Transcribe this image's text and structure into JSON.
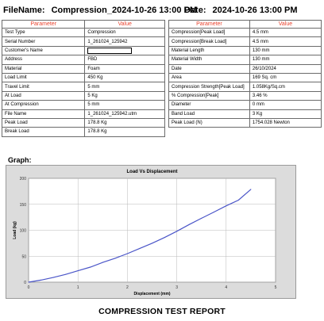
{
  "header": {
    "filename_label": "FileName:",
    "filename_value": "Compression_2024-10-26 13:00 PM",
    "date_label": "Date:",
    "date_value": "2024-10-26 13:00 PM"
  },
  "table_headers": {
    "parameter": "Parameter",
    "value": "Value"
  },
  "left_table": [
    {
      "param": "Test Type",
      "value": "Compression"
    },
    {
      "param": "Serial Number",
      "value": "1_261024_125942"
    },
    {
      "param": "Customer's Name",
      "value": ""
    },
    {
      "param": "Address",
      "value": "FBD"
    },
    {
      "param": "Material",
      "value": "Foam"
    },
    {
      "param": "Load Limit",
      "value": "450 Kg"
    },
    {
      "param": "Travel Limit",
      "value": "5 mm"
    },
    {
      "param": "At Load",
      "value": "5 Kg"
    },
    {
      "param": "At Compression",
      "value": "5 mm"
    },
    {
      "param": "File Name",
      "value": "1_261024_125942.utm"
    },
    {
      "param": "Peak Load",
      "value": "178.8 Kg"
    },
    {
      "param": "Break Load",
      "value": "178.8 Kg"
    }
  ],
  "right_table": [
    {
      "param": "Compression[Peak Load]",
      "value": "4.5 mm"
    },
    {
      "param": "Compression[Break Load]",
      "value": "4.5 mm"
    },
    {
      "param": "Material Length",
      "value": "130 mm"
    },
    {
      "param": "Material Width",
      "value": "130 mm"
    },
    {
      "param": "Date",
      "value": "26/10/2024"
    },
    {
      "param": "Area",
      "value": "169 Sq. cm"
    },
    {
      "param": "Compression Strength[Peak Load]",
      "value": " 1.058Kg/Sq.cm"
    },
    {
      "param": "% Compression[Peak]",
      "value": "3.46 %"
    },
    {
      "param": "Diameter",
      "value": "0 mm"
    },
    {
      "param": "Band Load",
      "value": "3 Kg"
    },
    {
      "param": "Peak Load (N)",
      "value": "1754.028 Newton"
    }
  ],
  "graph_label": "Graph:",
  "footer": "COMPRESSION TEST REPORT",
  "colors": {
    "param_header": "#e8432e",
    "line": "#4a55c8",
    "plot_bg": "#ffffff",
    "frame_bg": "#dcdcdc"
  },
  "chart_data": {
    "type": "line",
    "title": "Load Vs Displacement",
    "xlabel": "Displacement (mm)",
    "ylabel": "Load (kg)",
    "xlim": [
      0,
      5
    ],
    "ylim": [
      0,
      200
    ],
    "xticks": [
      0,
      1,
      2,
      3,
      4,
      5
    ],
    "yticks": [
      0,
      50,
      100,
      150,
      200
    ],
    "grid": true,
    "series": [
      {
        "x": [
          0,
          0.25,
          0.5,
          0.75,
          1.0,
          1.25,
          1.5,
          1.75,
          2.0,
          2.25,
          2.5,
          2.75,
          3.0,
          3.25,
          3.5,
          3.75,
          4.0,
          4.25,
          4.5
        ],
        "y": [
          0,
          4,
          9,
          15,
          22,
          29,
          38,
          46,
          55,
          65,
          75,
          86,
          98,
          111,
          123,
          135,
          147,
          158,
          178.8
        ]
      }
    ]
  }
}
